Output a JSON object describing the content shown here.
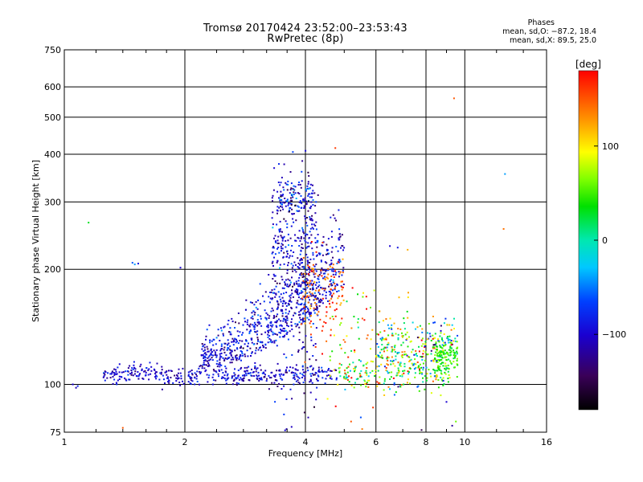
{
  "header": {
    "title_line1": "Tromsø 20170424 23:52:00–23:53:43",
    "title_line2": "RwPretec (8p)"
  },
  "phases_box": {
    "heading": "Phases",
    "line_o": "mean, sd,O: −87.2, 18.4",
    "line_x": "mean, sd,X:  89.5, 25.0"
  },
  "chart_data": {
    "type": "scatter",
    "title": "Tromsø 20170424 23:52:00–23:53:43",
    "subtitle": "RwPretec (8p)",
    "xlabel": "Frequency [MHz]",
    "ylabel": "Stationary phase Virtual Height [km]",
    "x_scale": "log",
    "y_scale": "log",
    "xlim": [
      1,
      16
    ],
    "ylim": [
      75,
      750
    ],
    "x_ticks": [
      1,
      2,
      4,
      6,
      8,
      10,
      16
    ],
    "x_tick_labels": [
      "1",
      "2",
      "4",
      "6",
      "8",
      "10",
      "16"
    ],
    "y_ticks": [
      75,
      100,
      200,
      300,
      400,
      500,
      600,
      750
    ],
    "y_tick_labels": [
      "75",
      "100",
      "200",
      "300",
      "400",
      "500",
      "600",
      "750"
    ],
    "x_minor_ticks": [
      1.2,
      1.4,
      1.6,
      1.8,
      2.4,
      2.8,
      3.2,
      3.6,
      5,
      7,
      9,
      12,
      14
    ],
    "grid": true,
    "colorbar": {
      "label": "[deg]",
      "range": [
        -180,
        180
      ],
      "ticks": [
        100,
        0,
        -100
      ],
      "tick_labels": [
        "100",
        "0",
        "−100"
      ]
    },
    "points": [
      {
        "x": 1.05,
        "y": 100,
        "phase": -100
      },
      {
        "x": 1.07,
        "y": 98,
        "phase": -110
      },
      {
        "x": 1.08,
        "y": 99,
        "phase": -80
      },
      {
        "x": 1.15,
        "y": 265,
        "phase": 30
      },
      {
        "x": 1.4,
        "y": 77,
        "phase": 150
      },
      {
        "x": 1.48,
        "y": 208,
        "phase": -60
      },
      {
        "x": 1.5,
        "y": 206,
        "phase": -40
      },
      {
        "x": 1.53,
        "y": 207,
        "phase": -90
      },
      {
        "x": 1.95,
        "y": 202,
        "phase": -100
      },
      {
        "x": 2.35,
        "y": 100,
        "phase": -95
      },
      {
        "x": 4.75,
        "y": 415,
        "phase": 160
      },
      {
        "x": 9.4,
        "y": 560,
        "phase": 150
      },
      {
        "x": 12.6,
        "y": 355,
        "phase": -40
      },
      {
        "x": 12.5,
        "y": 255,
        "phase": 140
      },
      {
        "x": 9.0,
        "y": 90,
        "phase": -100
      },
      {
        "x": 9.3,
        "y": 78,
        "phase": -120
      },
      {
        "x": 9.5,
        "y": 80,
        "phase": 60
      },
      {
        "x": 6.5,
        "y": 230,
        "phase": -100
      },
      {
        "x": 6.8,
        "y": 228,
        "phase": -90
      },
      {
        "x": 7.2,
        "y": 225,
        "phase": 120
      },
      {
        "x": 5.2,
        "y": 80,
        "phase": 150
      },
      {
        "x": 5.5,
        "y": 82,
        "phase": -60
      },
      {
        "x": 5.9,
        "y": 87,
        "phase": 160
      },
      {
        "x": 7.8,
        "y": 76,
        "phase": -150
      }
    ],
    "clusters": [
      {
        "name": "low_trace",
        "x_range": [
          1.25,
          4.8
        ],
        "y_center": 106,
        "y_spread": 3,
        "count": 420,
        "phase_mean": -100,
        "phase_sd": 20
      },
      {
        "name": "low_trace_high",
        "x_range": [
          4.8,
          9.2
        ],
        "y_center": 108,
        "y_spread": 5,
        "count": 180,
        "phase_mean": 60,
        "phase_sd": 60
      },
      {
        "name": "f_layer_main",
        "x_range": [
          2.2,
          5.0
        ],
        "y_center": 140,
        "y_spread": 35,
        "count": 700,
        "phase_mean": -95,
        "phase_sd": 25
      },
      {
        "name": "f_layer_upper",
        "x_range": [
          3.3,
          4.3
        ],
        "y_center": 215,
        "y_spread": 70,
        "count": 420,
        "phase_mean": -100,
        "phase_sd": 25
      },
      {
        "name": "f_layer_top",
        "x_range": [
          3.4,
          4.2
        ],
        "y_center": 310,
        "y_spread": 15,
        "count": 90,
        "phase_mean": -90,
        "phase_sd": 40
      },
      {
        "name": "x_trace_orange",
        "x_range": [
          3.9,
          5.0
        ],
        "y_center": 175,
        "y_spread": 25,
        "count": 120,
        "phase_mean": 150,
        "phase_sd": 20
      },
      {
        "name": "high_freq_cluster",
        "x_range": [
          6.0,
          9.6
        ],
        "y_center": 122,
        "y_spread": 12,
        "count": 260,
        "phase_mean": 40,
        "phase_sd": 80
      },
      {
        "name": "green_patch",
        "x_range": [
          8.4,
          9.6
        ],
        "y_center": 120,
        "y_spread": 6,
        "count": 110,
        "phase_mean": 45,
        "phase_sd": 15
      },
      {
        "name": "scatter_mid",
        "x_range": [
          4.5,
          8.0
        ],
        "y_center": 130,
        "y_spread": 25,
        "count": 90,
        "phase_mean": 100,
        "phase_sd": 60
      }
    ]
  }
}
